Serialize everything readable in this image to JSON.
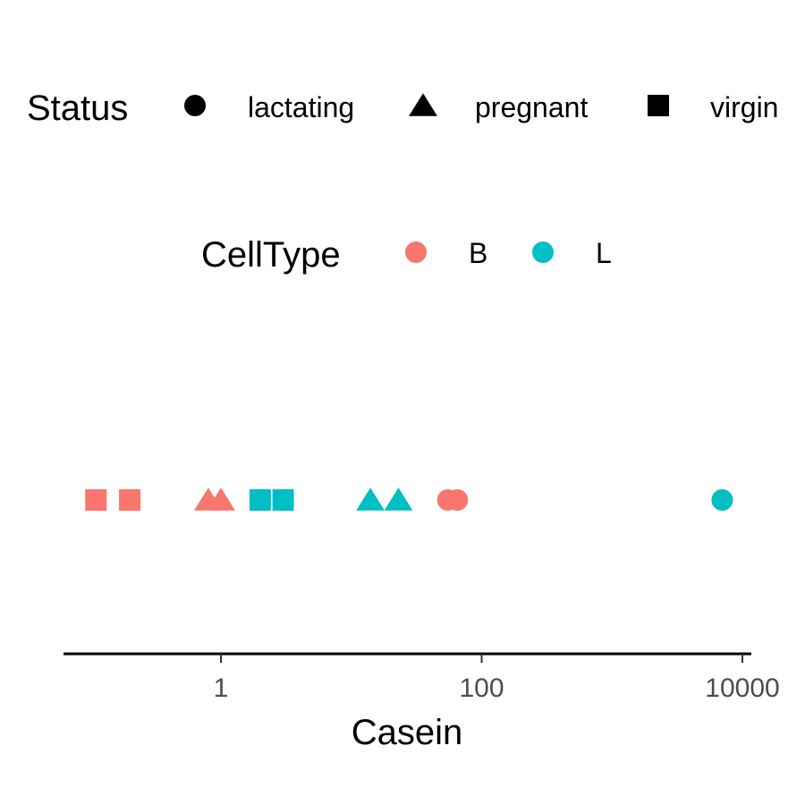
{
  "chart_data": {
    "type": "scatter",
    "xscale": "log10",
    "xlabel": "Casein",
    "ylabel": "",
    "xlim": [
      0.06,
      14000
    ],
    "x_ticks": [
      {
        "value": 1,
        "label": "1"
      },
      {
        "value": 100,
        "label": "100"
      },
      {
        "value": 10000,
        "label": "10000"
      }
    ],
    "grid": false,
    "legend_position": "top",
    "legends": {
      "shape": {
        "title": "Status",
        "entries": [
          {
            "label": "lactating",
            "shape": "circle"
          },
          {
            "label": "pregnant",
            "shape": "triangle"
          },
          {
            "label": "virgin",
            "shape": "square"
          }
        ]
      },
      "color": {
        "title": "CellType",
        "entries": [
          {
            "label": "B",
            "color": "#F8766D"
          },
          {
            "label": "L",
            "color": "#00BFC4"
          }
        ]
      }
    },
    "points": [
      {
        "x": 0.11,
        "cell_type": "B",
        "status": "virgin"
      },
      {
        "x": 0.2,
        "cell_type": "B",
        "status": "virgin"
      },
      {
        "x": 0.8,
        "cell_type": "B",
        "status": "pregnant"
      },
      {
        "x": 1.0,
        "cell_type": "B",
        "status": "pregnant"
      },
      {
        "x": 2.0,
        "cell_type": "L",
        "status": "virgin"
      },
      {
        "x": 3.0,
        "cell_type": "L",
        "status": "virgin"
      },
      {
        "x": 14,
        "cell_type": "L",
        "status": "pregnant"
      },
      {
        "x": 23,
        "cell_type": "L",
        "status": "pregnant"
      },
      {
        "x": 55,
        "cell_type": "B",
        "status": "lactating"
      },
      {
        "x": 65,
        "cell_type": "B",
        "status": "lactating"
      },
      {
        "x": 7000,
        "cell_type": "L",
        "status": "lactating"
      }
    ]
  }
}
